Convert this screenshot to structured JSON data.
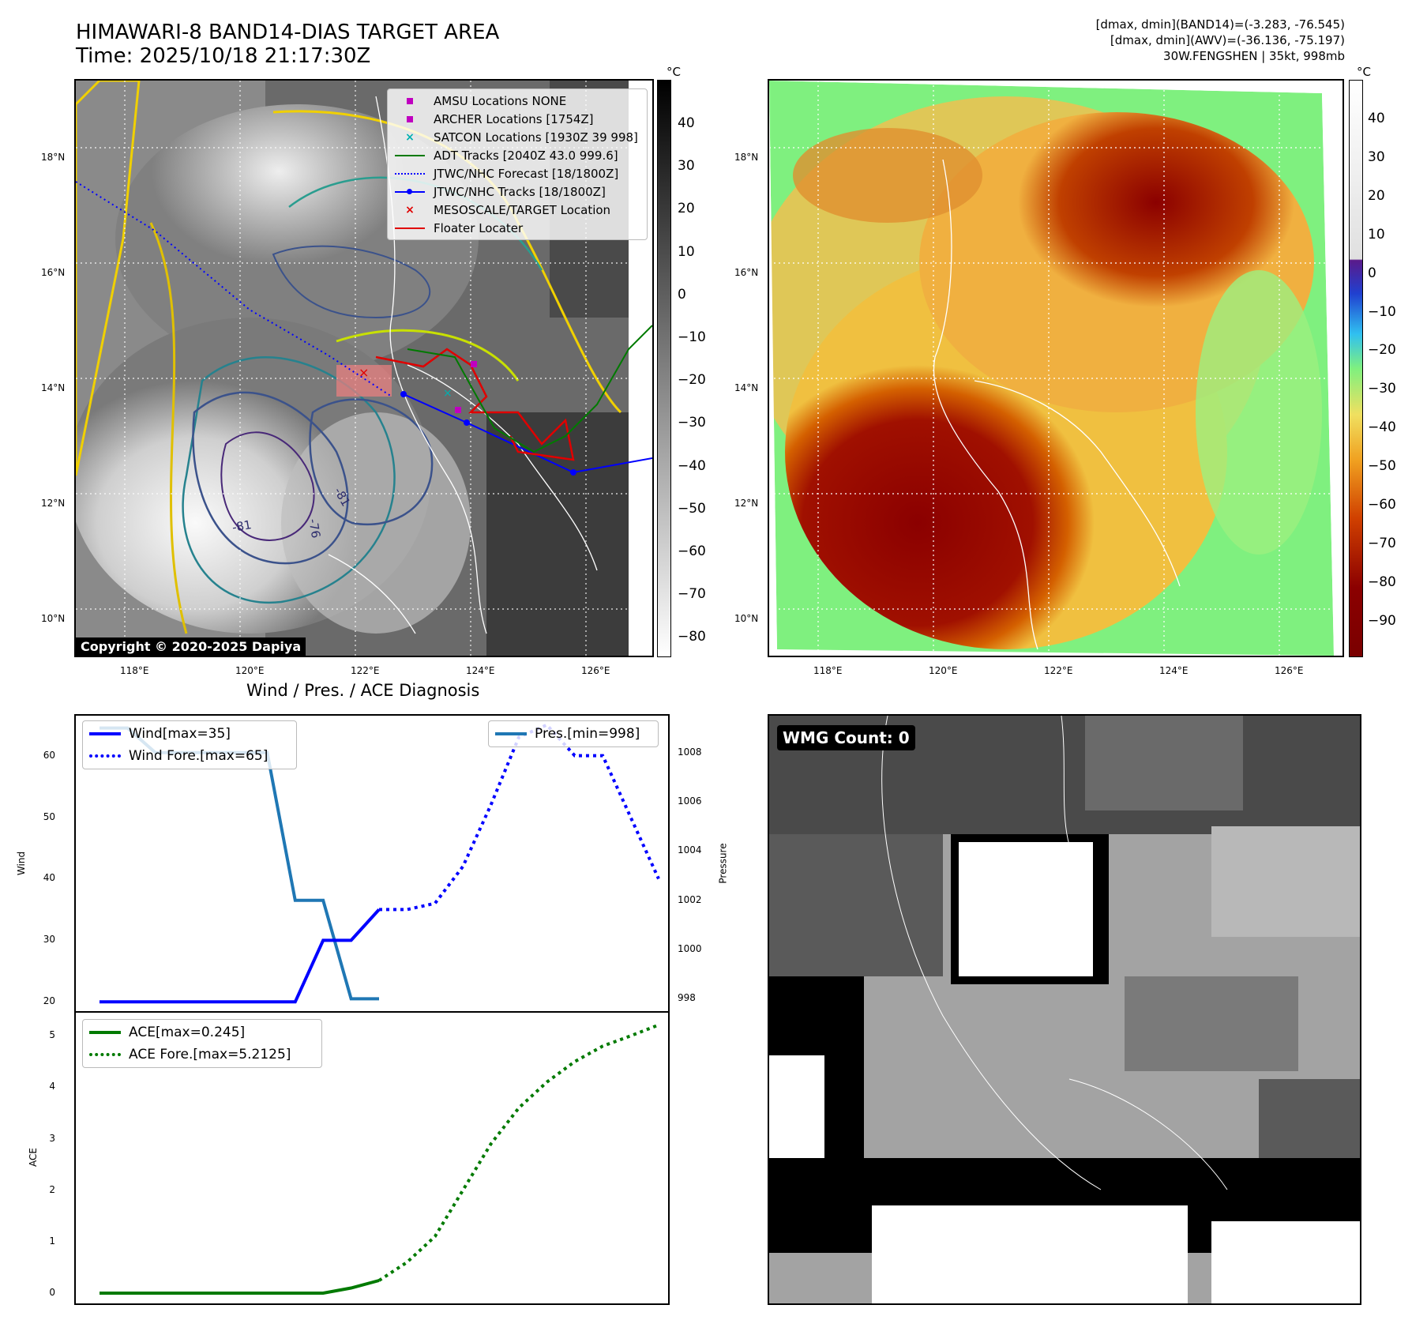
{
  "header": {
    "title_line1": "HIMAWARI-8 BAND14-DIAS TARGET AREA",
    "title_line2": "Time: 2025/10/18 21:17:30Z",
    "right_line1": "[dmax, dmin](BAND14)=(-3.283, -76.545)",
    "right_line2": "[dmax, dmin](AWV)=(-36.136, -75.197)",
    "right_line3": "30W.FENGSHEN | 35kt, 998mb"
  },
  "map_axes": {
    "lon_ticks": [
      "118°E",
      "120°E",
      "122°E",
      "124°E",
      "126°E"
    ],
    "lat_ticks": [
      "18°N",
      "16°N",
      "14°N",
      "12°N",
      "10°N"
    ]
  },
  "colorbar_left": {
    "unit": "°C",
    "ticks": [
      "40",
      "30",
      "20",
      "10",
      "0",
      "−10",
      "−20",
      "−30",
      "−40",
      "−50",
      "−60",
      "−70",
      "−80"
    ]
  },
  "colorbar_right": {
    "unit": "°C",
    "ticks": [
      "40",
      "30",
      "20",
      "10",
      "0",
      "−10",
      "−20",
      "−30",
      "−40",
      "−50",
      "−60",
      "−70",
      "−80",
      "−90"
    ]
  },
  "map_legend": [
    {
      "label": "AMSU Locations NONE",
      "kind": "square",
      "color": "#c000c0"
    },
    {
      "label": "ARCHER Locations [1754Z]",
      "kind": "square",
      "color": "#c000c0"
    },
    {
      "label": "SATCON Locations [1930Z 39 998]",
      "kind": "x",
      "color": "#00b0b0"
    },
    {
      "label": "ADT Tracks [2040Z 43.0 999.6]",
      "kind": "line",
      "color": "#007a00"
    },
    {
      "label": "JTWC/NHC Forecast [18/1800Z]",
      "kind": "dotted",
      "color": "#0000ff"
    },
    {
      "label": "JTWC/NHC Tracks [18/1800Z]",
      "kind": "linedot",
      "color": "#0000ff"
    },
    {
      "label": "MESOSCALE/TARGET Location",
      "kind": "x",
      "color": "#e00000"
    },
    {
      "label": "Floater Locater",
      "kind": "line",
      "color": "#e00000"
    }
  ],
  "contour_labels": [
    "-81",
    "-81",
    "-76"
  ],
  "copyright": "Copyright © 2020-2025 Dapiya",
  "wmg_label": "WMG Count: 0",
  "chart_data": [
    {
      "type": "line",
      "title": "Wind / Pres. / ACE Diagnosis",
      "xlabel": "",
      "ylabel": "Wind",
      "ylim": [
        18.5,
        66.5
      ],
      "yticks": [
        "60",
        "50",
        "40",
        "30",
        "20"
      ],
      "series": [
        {
          "name": "Wind[max=35]",
          "style": "solid",
          "color": "#0000ff",
          "x": [
            0,
            1,
            2,
            3,
            4,
            5,
            6,
            7,
            8,
            9,
            10
          ],
          "values": [
            20,
            20,
            20,
            20,
            20,
            20,
            20,
            20,
            30,
            30,
            35
          ]
        },
        {
          "name": "Wind Fore.[max=65]",
          "style": "dotted",
          "color": "#0000ff",
          "x": [
            10,
            11,
            12,
            13,
            14,
            15,
            16,
            17,
            18,
            19,
            20
          ],
          "values": [
            35,
            35,
            36,
            42,
            52,
            63,
            65,
            60,
            60,
            50,
            40
          ]
        }
      ],
      "secondary": {
        "ylabel": "Pressure",
        "ylim": [
          997.5,
          1009.5
        ],
        "yticks": [
          "1008",
          "1006",
          "1004",
          "1002",
          "1000",
          "998"
        ],
        "series": [
          {
            "name": "Pres.[min=998]",
            "style": "solid",
            "color": "#1f77b4",
            "x": [
              0,
              1,
              2,
              3,
              4,
              5,
              6,
              7,
              8,
              9,
              10
            ],
            "values": [
              1009,
              1009,
              1008,
              1008,
              1008,
              1008,
              1008,
              1002,
              1002,
              998,
              998
            ]
          }
        ]
      }
    },
    {
      "type": "line",
      "ylabel": "ACE",
      "ylim": [
        -0.2,
        5.45
      ],
      "yticks": [
        "5",
        "4",
        "3",
        "2",
        "1",
        "0"
      ],
      "series": [
        {
          "name": "ACE[max=0.245]",
          "style": "solid",
          "color": "#007a00",
          "x": [
            0,
            1,
            2,
            3,
            4,
            5,
            6,
            7,
            8,
            9,
            10
          ],
          "values": [
            0,
            0,
            0,
            0,
            0,
            0,
            0,
            0,
            0,
            0.1,
            0.245
          ]
        },
        {
          "name": "ACE Fore.[max=5.2125]",
          "style": "dotted",
          "color": "#007a00",
          "x": [
            10,
            11,
            12,
            13,
            14,
            15,
            16,
            17,
            18,
            19,
            20
          ],
          "values": [
            0.245,
            0.6,
            1.1,
            2.0,
            2.9,
            3.6,
            4.1,
            4.5,
            4.8,
            5.0,
            5.2125
          ]
        }
      ]
    }
  ]
}
